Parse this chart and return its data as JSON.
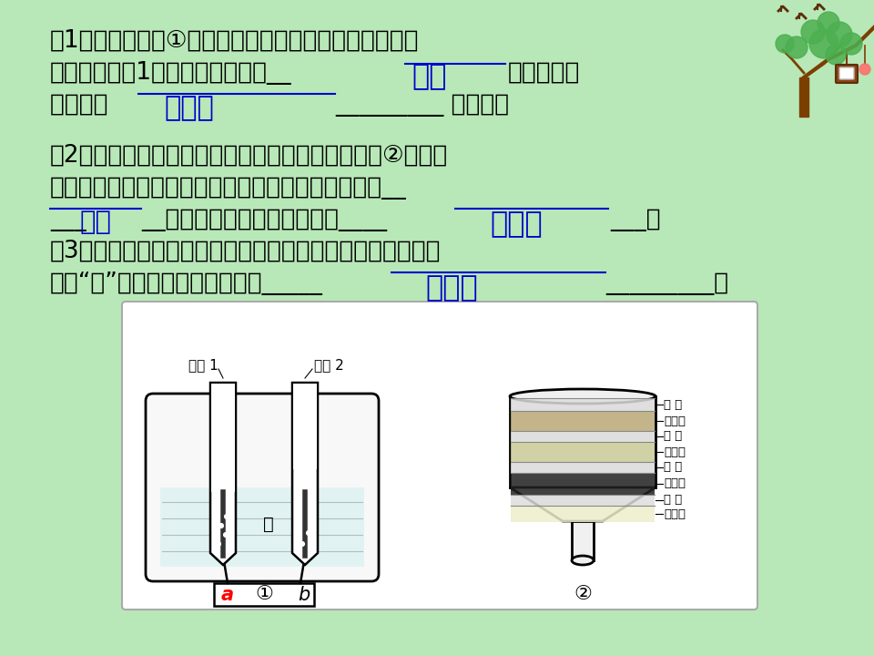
{
  "bg_color": "#b8e8b8",
  "text_color": "#000000",
  "answer_blue": "#0000cc",
  "main_font_size": 19,
  "answer_font_size": 22,
  "line1": "（1）小刚利用图①所示的装置探究水的组成。通电一段",
  "line2": "时间后，试管1中所收集的气体为__",
  "line2_ans": "氢气",
  "line2_end": "，该实验说",
  "line3": "明水是由  ",
  "line3_ans": "氢和氧",
  "line3_end": "_________ 组成的。",
  "line4": "（2）小刚为了净化收集到的雨水，自制了一个如图②所示的",
  "line5": "简易净水器，其中小卵石、石英沙和膨松棉的作用是__",
  "line6_pre": "___",
  "line6_ans": "过滤",
  "line6_mid": "__，起吸附异味和色素的物是____",
  "line6_ans2": "活性炭",
  "line6_end": "___。",
  "line7": "（3）矿泉水、蒸馏水、自来水和净化后的雨水都是生活中常",
  "line8_pre": "见的“水”，其中属于纯净物的是_____",
  "line8_ans": "蒸馏水",
  "line8_end": "_________。",
  "tube1_label": "试管 1",
  "tube2_label": "试管 2",
  "water_label": "水",
  "a_label": "a",
  "b_label": "b",
  "diag1_label": "①",
  "diag2_label": "②",
  "filter_layers": [
    [
      "纱 布",
      "#dddddd",
      14
    ],
    [
      "小卵石",
      "#bbaa88",
      22
    ],
    [
      "纱 布",
      "#dddddd",
      12
    ],
    [
      "石英沙",
      "#cccc99",
      22
    ],
    [
      "纱 布",
      "#dddddd",
      12
    ],
    [
      "活性炭",
      "#333333",
      24
    ],
    [
      "纱 布",
      "#dddddd",
      12
    ],
    [
      "膨松棉",
      "#eeeecc",
      18
    ]
  ]
}
